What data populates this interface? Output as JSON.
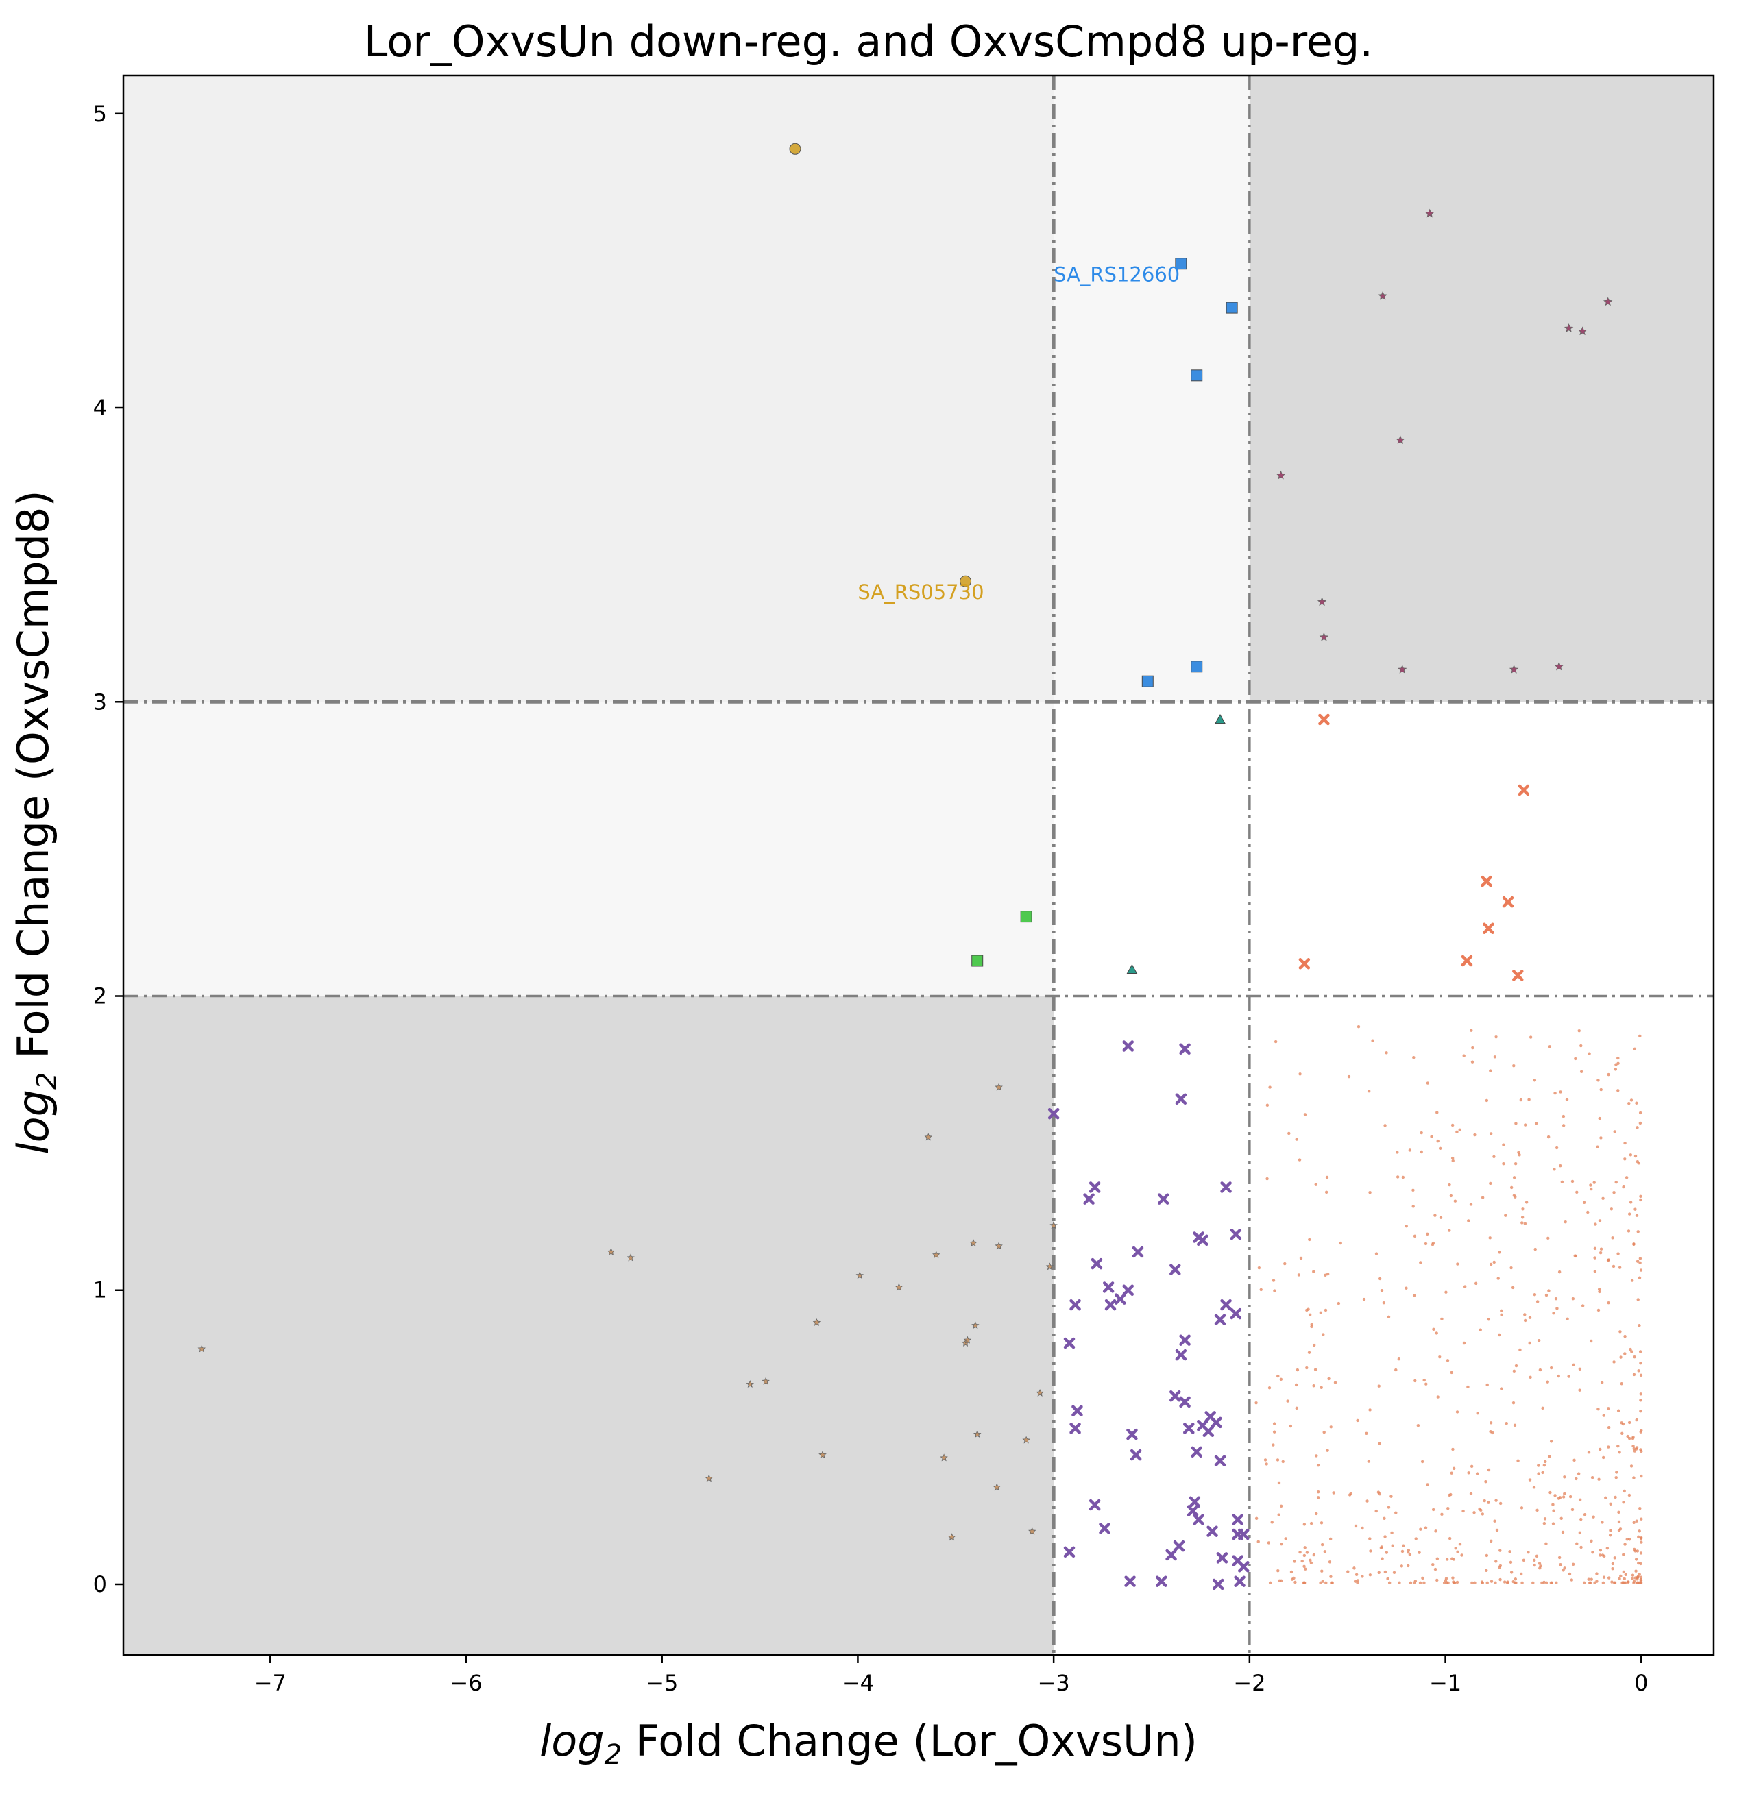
{
  "chart_data": {
    "type": "scatter",
    "title": "Lor_OxvsUn down-reg. and OxvsCmpd8 up-reg.",
    "xlabel_prefix": "log",
    "xlabel_sub": "2",
    "xlabel_suffix": " Fold Change (Lor_OxvsUn)",
    "ylabel_prefix": "log",
    "ylabel_sub": "2",
    "ylabel_suffix": " Fold Change (OxvsCmpd8)",
    "xlim": [
      -7.75,
      0.37
    ],
    "ylim": [
      -0.24,
      5.13
    ],
    "x_ticks": [
      -7,
      -6,
      -5,
      -4,
      -3,
      -2,
      -1,
      0
    ],
    "x_tick_labels": [
      "−7",
      "−6",
      "−5",
      "−4",
      "−3",
      "−2",
      "−1",
      "0"
    ],
    "y_ticks": [
      0,
      1,
      2,
      3,
      4,
      5
    ],
    "y_tick_labels": [
      "0",
      "1",
      "2",
      "3",
      "4",
      "5"
    ],
    "grid": false,
    "thresholds": {
      "x": [
        -3,
        -2
      ],
      "y": [
        2,
        3
      ]
    },
    "regions": [
      {
        "x": [
          -7.75,
          -3
        ],
        "y": [
          3,
          5.13
        ],
        "color": "#f0f0f0"
      },
      {
        "x": [
          -3,
          -2
        ],
        "y": [
          3,
          5.13
        ],
        "color": "#f7f7f7"
      },
      {
        "x": [
          -2,
          0.37
        ],
        "y": [
          3,
          5.13
        ],
        "color": "#dadada"
      },
      {
        "x": [
          -7.75,
          -3
        ],
        "y": [
          2,
          3
        ],
        "color": "#f7f7f7"
      },
      {
        "x": [
          -3,
          -2
        ],
        "y": [
          2,
          3
        ],
        "color": "#ffffff"
      },
      {
        "x": [
          -2,
          0.37
        ],
        "y": [
          2,
          3
        ],
        "color": "#ffffff"
      },
      {
        "x": [
          -7.75,
          -3
        ],
        "y": [
          -0.24,
          2
        ],
        "color": "#dadada"
      },
      {
        "x": [
          -3,
          -2
        ],
        "y": [
          -0.24,
          2
        ],
        "color": "#ffffff"
      },
      {
        "x": [
          -2,
          0.37
        ],
        "y": [
          -0.24,
          2
        ],
        "color": "#ffffff"
      }
    ],
    "series": [
      {
        "marker": "circle",
        "color": "#d4a93c",
        "size": 8,
        "points": [
          [
            -4.32,
            4.88
          ],
          [
            -3.45,
            3.41
          ]
        ]
      },
      {
        "marker": "square",
        "color": "#3b8de0",
        "size": 8,
        "points": [
          [
            -2.35,
            4.49
          ],
          [
            -2.09,
            4.34
          ],
          [
            -2.27,
            4.11
          ],
          [
            -2.27,
            3.12
          ],
          [
            -2.52,
            3.07
          ]
        ]
      },
      {
        "marker": "star",
        "color": "#9b4a6e",
        "size": 6,
        "points": [
          [
            -1.08,
            4.66
          ],
          [
            -1.32,
            4.38
          ],
          [
            -0.17,
            4.36
          ],
          [
            -0.37,
            4.27
          ],
          [
            -0.3,
            4.26
          ],
          [
            -1.23,
            3.89
          ],
          [
            -1.84,
            3.77
          ],
          [
            -1.63,
            3.34
          ],
          [
            -1.62,
            3.22
          ],
          [
            -1.22,
            3.11
          ],
          [
            -0.65,
            3.11
          ],
          [
            -0.42,
            3.12
          ]
        ]
      },
      {
        "marker": "triangle",
        "color": "#2a9a8a",
        "size": 7,
        "points": [
          [
            -2.15,
            2.94
          ],
          [
            -2.6,
            2.09
          ]
        ]
      },
      {
        "marker": "square",
        "color": "#4fc94f",
        "size": 8,
        "points": [
          [
            -3.14,
            2.27
          ],
          [
            -3.39,
            2.12
          ]
        ]
      },
      {
        "marker": "x",
        "color": "#ea7b58",
        "size": 6,
        "points": [
          [
            -1.62,
            2.94
          ],
          [
            -0.6,
            2.7
          ],
          [
            -0.79,
            2.39
          ],
          [
            -0.68,
            2.32
          ],
          [
            -0.78,
            2.23
          ],
          [
            -1.72,
            2.11
          ],
          [
            -0.89,
            2.12
          ],
          [
            -0.63,
            2.07
          ]
        ]
      },
      {
        "marker": "x",
        "color": "#7a55a8",
        "size": 6,
        "points": [
          [
            -2.62,
            1.83
          ],
          [
            -2.33,
            1.82
          ],
          [
            -2.35,
            1.65
          ],
          [
            -3.0,
            1.6
          ],
          [
            -2.79,
            1.35
          ],
          [
            -2.82,
            1.31
          ],
          [
            -2.44,
            1.31
          ],
          [
            -2.12,
            1.35
          ],
          [
            -2.26,
            1.18
          ],
          [
            -2.24,
            1.17
          ],
          [
            -2.07,
            1.19
          ],
          [
            -2.57,
            1.13
          ],
          [
            -2.78,
            1.09
          ],
          [
            -2.38,
            1.07
          ],
          [
            -2.72,
            1.01
          ],
          [
            -2.62,
            1.0
          ],
          [
            -2.66,
            0.97
          ],
          [
            -2.71,
            0.95
          ],
          [
            -2.89,
            0.95
          ],
          [
            -2.12,
            0.95
          ],
          [
            -2.07,
            0.92
          ],
          [
            -2.15,
            0.9
          ],
          [
            -2.33,
            0.83
          ],
          [
            -2.35,
            0.78
          ],
          [
            -2.92,
            0.82
          ],
          [
            -2.38,
            0.64
          ],
          [
            -2.33,
            0.62
          ],
          [
            -2.24,
            0.54
          ],
          [
            -2.21,
            0.52
          ],
          [
            -2.2,
            0.57
          ],
          [
            -2.17,
            0.55
          ],
          [
            -2.88,
            0.59
          ],
          [
            -2.89,
            0.53
          ],
          [
            -2.31,
            0.53
          ],
          [
            -2.27,
            0.45
          ],
          [
            -2.15,
            0.42
          ],
          [
            -2.6,
            0.51
          ],
          [
            -2.58,
            0.44
          ],
          [
            -2.79,
            0.27
          ],
          [
            -2.28,
            0.28
          ],
          [
            -2.29,
            0.25
          ],
          [
            -2.26,
            0.22
          ],
          [
            -2.74,
            0.19
          ],
          [
            -2.06,
            0.22
          ],
          [
            -2.06,
            0.17
          ],
          [
            -2.03,
            0.17
          ],
          [
            -2.19,
            0.18
          ],
          [
            -2.36,
            0.13
          ],
          [
            -2.4,
            0.1
          ],
          [
            -2.14,
            0.09
          ],
          [
            -2.06,
            0.08
          ],
          [
            -2.03,
            0.06
          ],
          [
            -2.92,
            0.11
          ],
          [
            -2.61,
            0.01
          ],
          [
            -2.45,
            0.01
          ],
          [
            -2.16,
            0.0
          ],
          [
            -2.05,
            0.01
          ]
        ]
      },
      {
        "marker": "star",
        "color": "#c4956a",
        "size": 5,
        "points": [
          [
            -7.35,
            0.8
          ],
          [
            -5.26,
            1.13
          ],
          [
            -5.16,
            1.11
          ],
          [
            -4.76,
            0.36
          ],
          [
            -4.55,
            0.68
          ],
          [
            -4.47,
            0.69
          ],
          [
            -4.21,
            0.89
          ],
          [
            -4.18,
            0.44
          ],
          [
            -3.99,
            1.05
          ],
          [
            -3.79,
            1.01
          ],
          [
            -3.64,
            1.52
          ],
          [
            -3.6,
            1.12
          ],
          [
            -3.56,
            0.43
          ],
          [
            -3.52,
            0.16
          ],
          [
            -3.45,
            0.82
          ],
          [
            -3.44,
            0.83
          ],
          [
            -3.41,
            1.16
          ],
          [
            -3.4,
            0.88
          ],
          [
            -3.39,
            0.51
          ],
          [
            -3.28,
            1.69
          ],
          [
            -3.28,
            1.15
          ],
          [
            -3.29,
            0.33
          ],
          [
            -3.14,
            0.49
          ],
          [
            -3.11,
            0.18
          ],
          [
            -3.07,
            0.65
          ],
          [
            -3.02,
            1.08
          ],
          [
            -3.0,
            1.22
          ]
        ]
      },
      {
        "marker": "dot",
        "color": "#e3825a",
        "size": 2.2,
        "scatter_cloud": true,
        "points": []
      }
    ],
    "annotations": [
      {
        "text": "SA_RS12660",
        "x": -3.0,
        "y": 4.43,
        "color": "#2d8ae8"
      },
      {
        "text": "SA_RS05730",
        "x": -4.0,
        "y": 3.35,
        "color": "#d4a021"
      }
    ]
  }
}
